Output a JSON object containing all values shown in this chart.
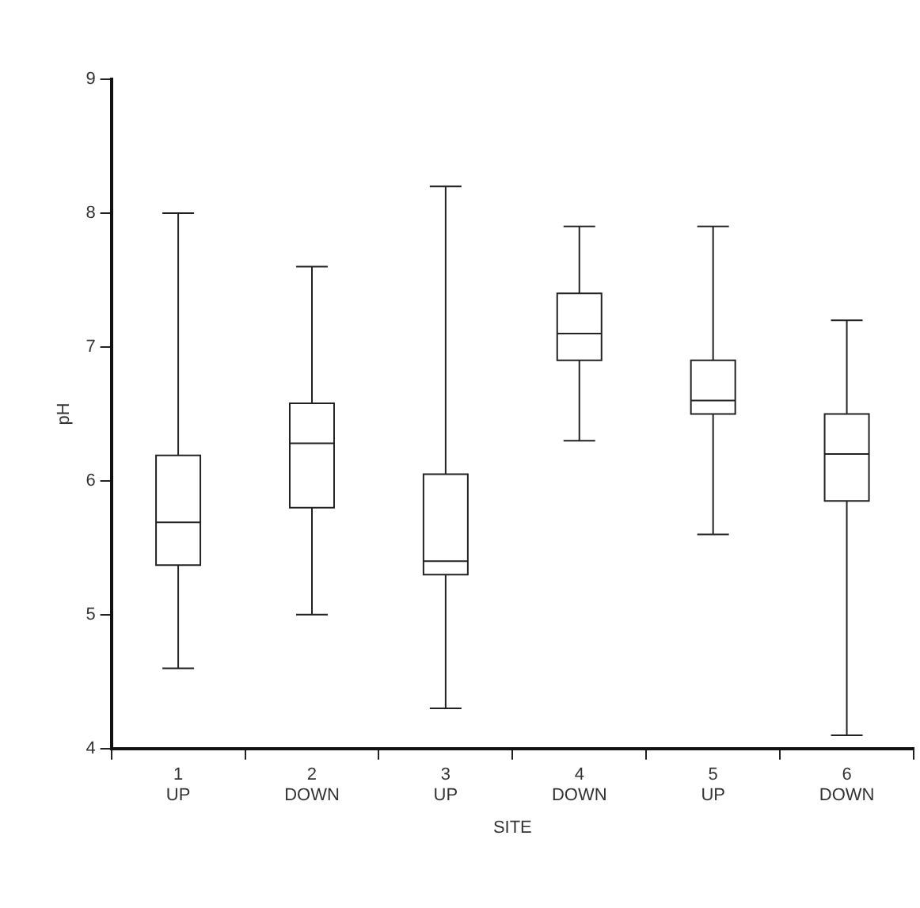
{
  "chart_data": {
    "type": "box",
    "xlabel": "SITE",
    "ylabel": "pH",
    "categories": [
      "1\nUP",
      "2\nDOWN",
      "3\nUP",
      "4\nDOWN",
      "5\nUP",
      "6\nDOWN"
    ],
    "color": "#222222",
    "boxes": [
      {
        "low": 4.6,
        "q1": 5.37,
        "median": 5.69,
        "q3": 6.19,
        "high": 8.0
      },
      {
        "low": 5.0,
        "q1": 5.8,
        "median": 6.28,
        "q3": 6.58,
        "high": 7.6
      },
      {
        "low": 4.3,
        "q1": 5.3,
        "median": 5.4,
        "q3": 6.05,
        "high": 8.2
      },
      {
        "low": 6.3,
        "q1": 6.9,
        "median": 7.1,
        "q3": 7.4,
        "high": 7.9
      },
      {
        "low": 5.6,
        "q1": 6.5,
        "median": 6.6,
        "q3": 6.9,
        "high": 7.9
      },
      {
        "low": 4.1,
        "q1": 5.85,
        "median": 6.2,
        "q3": 6.5,
        "high": 7.2
      }
    ],
    "ylim": [
      4,
      9
    ],
    "yticks": [
      4,
      5,
      6,
      7,
      8,
      9
    ],
    "grid": false,
    "legend": false
  }
}
